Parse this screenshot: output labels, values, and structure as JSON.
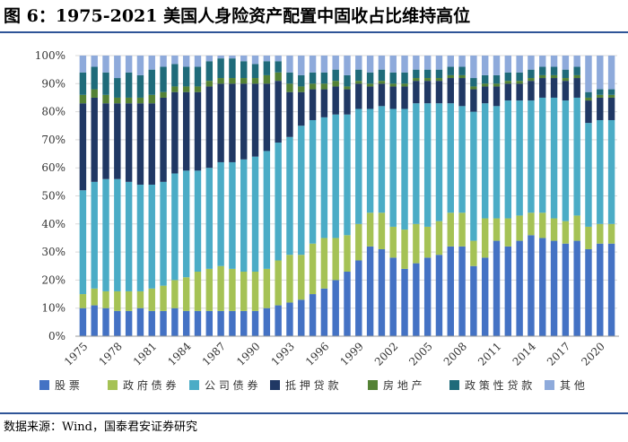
{
  "header": {
    "title": "图 6：1975-2021 美国人身险资产配置中固收占比维持高位"
  },
  "footer": {
    "source": "数据来源：Wind，国泰君安证券研究"
  },
  "colors": {
    "rule": "#2f5597",
    "series": [
      "#4472c4",
      "#a5c255",
      "#4bacc6",
      "#203864",
      "#548235",
      "#1f6b7a",
      "#8eaadb"
    ]
  },
  "chart_data": {
    "type": "bar",
    "stacked": true,
    "title": "1975-2021 美国人身险资产配置中固收占比维持高位",
    "xlabel": "",
    "ylabel": "",
    "ylim": [
      0,
      100
    ],
    "yticks": [
      "0%",
      "10%",
      "20%",
      "30%",
      "40%",
      "50%",
      "60%",
      "70%",
      "80%",
      "90%",
      "100%"
    ],
    "xtick_labels": [
      "1975",
      "1978",
      "1981",
      "1984",
      "1987",
      "1990",
      "1993",
      "1996",
      "1999",
      "2002",
      "2005",
      "2008",
      "2011",
      "2014",
      "2017",
      "2020"
    ],
    "legend_position": "bottom",
    "categories": [
      "1975",
      "1976",
      "1977",
      "1978",
      "1979",
      "1980",
      "1981",
      "1982",
      "1983",
      "1984",
      "1985",
      "1986",
      "1987",
      "1988",
      "1989",
      "1990",
      "1991",
      "1992",
      "1993",
      "1994",
      "1995",
      "1996",
      "1997",
      "1998",
      "1999",
      "2000",
      "2001",
      "2002",
      "2003",
      "2004",
      "2005",
      "2006",
      "2007",
      "2008",
      "2009",
      "2010",
      "2011",
      "2012",
      "2013",
      "2014",
      "2015",
      "2016",
      "2017",
      "2018",
      "2019",
      "2020",
      "2021"
    ],
    "series": [
      {
        "name": "股票",
        "values": [
          10,
          11,
          10,
          9,
          9,
          10,
          9,
          9,
          10,
          9,
          9,
          9,
          9,
          9,
          9,
          9,
          10,
          11,
          12,
          13,
          15,
          17,
          20,
          23,
          27,
          32,
          31,
          28,
          24,
          26,
          28,
          29,
          32,
          32,
          25,
          28,
          34,
          32,
          34,
          36,
          35,
          34,
          33,
          34,
          31,
          33,
          33
        ]
      },
      {
        "name": "政府债券",
        "values": [
          5,
          6,
          6,
          7,
          7,
          6,
          8,
          9,
          10,
          12,
          14,
          15,
          16,
          15,
          14,
          14,
          14,
          16,
          17,
          16,
          18,
          18,
          15,
          13,
          13,
          12,
          13,
          11,
          14,
          14,
          11,
          12,
          12,
          12,
          9,
          14,
          8,
          10,
          9,
          8,
          9,
          8,
          8,
          9,
          8,
          7,
          7
        ]
      },
      {
        "name": "公司债券",
        "values": [
          37,
          38,
          40,
          40,
          39,
          38,
          37,
          37,
          38,
          38,
          36,
          36,
          37,
          38,
          40,
          41,
          42,
          42,
          42,
          46,
          44,
          43,
          44,
          43,
          41,
          37,
          38,
          42,
          43,
          43,
          44,
          42,
          39,
          38,
          46,
          41,
          40,
          42,
          41,
          40,
          41,
          43,
          43,
          42,
          37,
          37,
          37
        ]
      },
      {
        "name": "抵押贷款",
        "values": [
          31,
          30,
          27,
          27,
          28,
          29,
          29,
          30,
          29,
          28,
          28,
          29,
          28,
          28,
          27,
          26,
          24,
          22,
          16,
          12,
          11,
          10,
          10,
          9,
          9,
          8,
          8,
          8,
          8,
          8,
          8,
          8,
          9,
          10,
          8,
          6,
          7,
          6,
          6,
          7,
          7,
          7,
          7,
          7,
          8,
          8,
          8
        ]
      },
      {
        "name": "房地产",
        "values": [
          3,
          3,
          3,
          2,
          2,
          2,
          3,
          2,
          2,
          2,
          2,
          2,
          2,
          2,
          2,
          2,
          3,
          3,
          3,
          2,
          2,
          2,
          2,
          1,
          1,
          1,
          1,
          1,
          1,
          1,
          1,
          1,
          1,
          1,
          1,
          1,
          1,
          1,
          1,
          1,
          1,
          1,
          1,
          1,
          1,
          1,
          1
        ]
      },
      {
        "name": "政策性贷款",
        "values": [
          8,
          8,
          8,
          7,
          9,
          8,
          9,
          9,
          8,
          7,
          7,
          7,
          7,
          7,
          6,
          5,
          5,
          4,
          4,
          4,
          4,
          4,
          4,
          4,
          4,
          4,
          4,
          4,
          4,
          3,
          3,
          3,
          3,
          3,
          3,
          3,
          3,
          3,
          3,
          3,
          3,
          3,
          3,
          3,
          2,
          2,
          2
        ]
      },
      {
        "name": "其他",
        "values": [
          6,
          4,
          6,
          8,
          6,
          7,
          5,
          4,
          3,
          4,
          4,
          2,
          1,
          1,
          2,
          3,
          2,
          2,
          6,
          7,
          6,
          6,
          5,
          7,
          5,
          6,
          5,
          6,
          6,
          5,
          5,
          5,
          4,
          4,
          8,
          7,
          7,
          6,
          6,
          5,
          4,
          4,
          5,
          4,
          13,
          12,
          12
        ]
      }
    ]
  }
}
